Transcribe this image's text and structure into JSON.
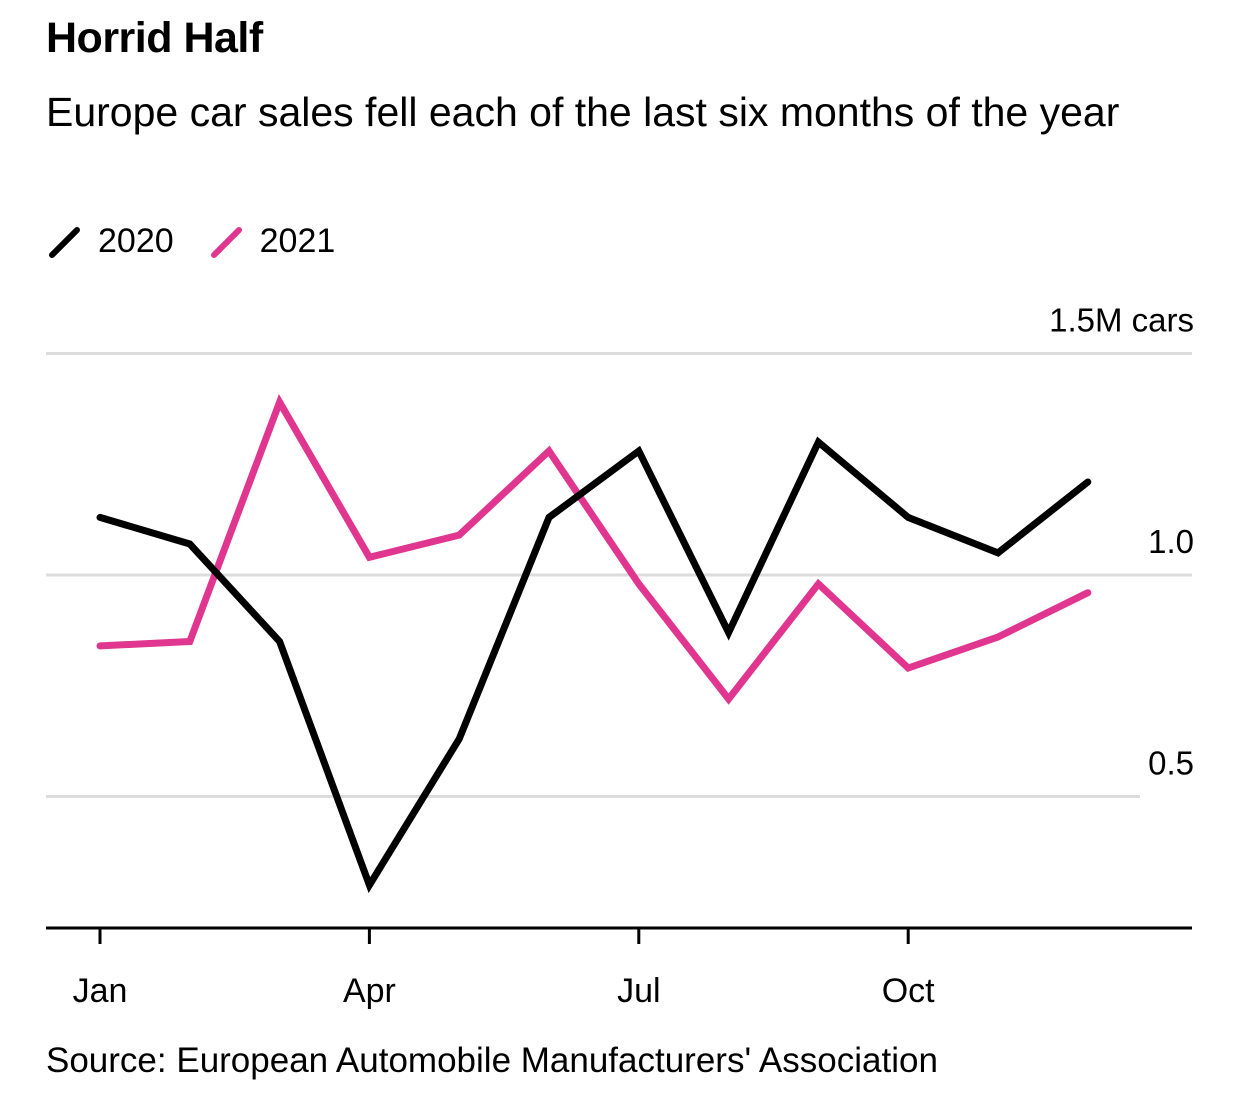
{
  "title": "Horrid Half",
  "subtitle": "Europe car sales fell each of the last six months of the year",
  "legend": [
    {
      "label": "2020",
      "color": "#000000"
    },
    {
      "label": "2021",
      "color": "#e0368f"
    }
  ],
  "source": "Source: European Automobile Manufacturers' Association",
  "chart_data": {
    "type": "line",
    "title": "Horrid Half",
    "subtitle": "Europe car sales fell each of the last six months of the year",
    "x": [
      "Jan",
      "Feb",
      "Mar",
      "Apr",
      "May",
      "Jun",
      "Jul",
      "Aug",
      "Sep",
      "Oct",
      "Nov",
      "Dec"
    ],
    "xticks": [
      "Jan",
      "Apr",
      "Jul",
      "Oct"
    ],
    "y_unit_label": "1.5M cars",
    "yticks": [
      {
        "value": 1.5,
        "label": "1.5M cars"
      },
      {
        "value": 1.0,
        "label": "1.0"
      },
      {
        "value": 0.5,
        "label": "0.5"
      }
    ],
    "ylim": [
      0.2,
      1.5
    ],
    "grid": true,
    "legend_position": "top-left",
    "series": [
      {
        "name": "2020",
        "color": "#000000",
        "values": [
          1.13,
          1.07,
          0.85,
          0.3,
          0.63,
          1.13,
          1.28,
          0.87,
          1.3,
          1.13,
          1.05,
          1.21
        ]
      },
      {
        "name": "2021",
        "color": "#e0368f",
        "values": [
          0.84,
          0.85,
          1.39,
          1.04,
          1.09,
          1.28,
          0.98,
          0.72,
          0.98,
          0.79,
          0.86,
          0.96
        ]
      }
    ]
  }
}
